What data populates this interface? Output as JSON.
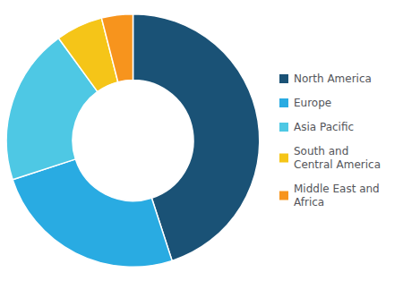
{
  "chart_data": {
    "type": "donut",
    "categories": [
      "North America",
      "Europe",
      "Asia Pacific",
      "South and\nCentral America",
      "Middle East and\nAfrica"
    ],
    "values": [
      45,
      25,
      20,
      6,
      4
    ],
    "colors": [
      "#1a5276",
      "#29abe2",
      "#4ec8e4",
      "#f5c518",
      "#f7941d"
    ],
    "legend": "right"
  }
}
